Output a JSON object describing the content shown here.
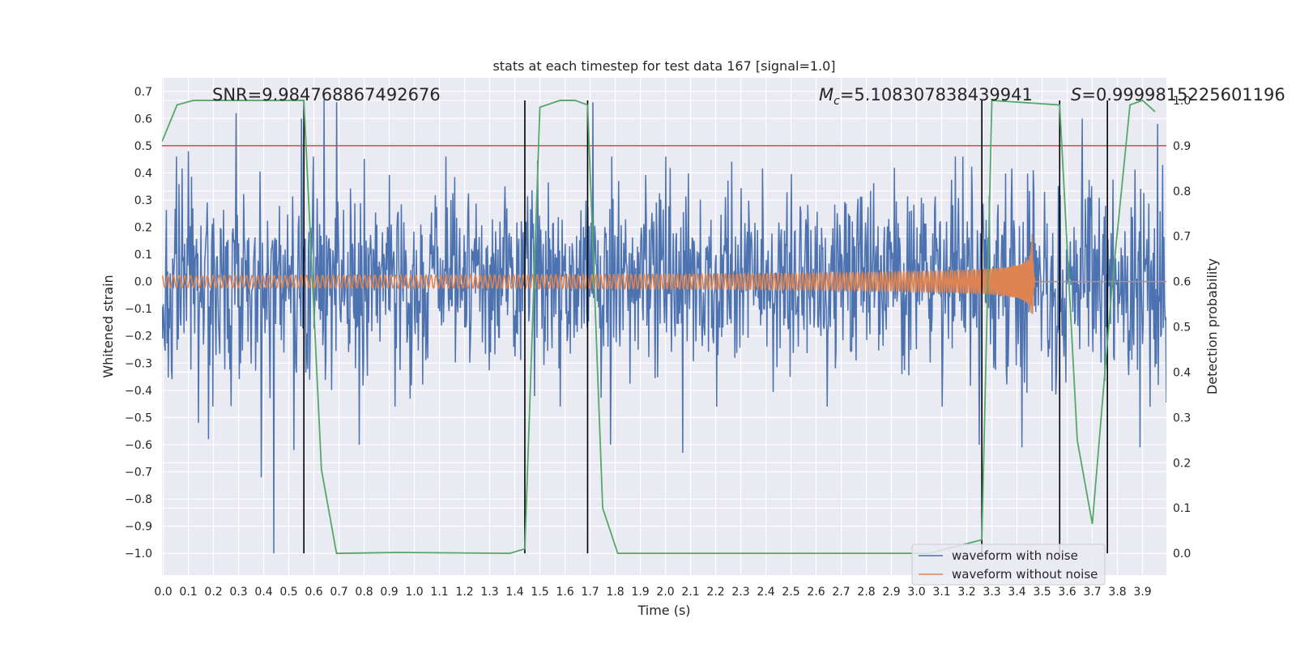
{
  "chart_data": {
    "type": "line",
    "title": "stats at each timestep for test data 167 [signal=1.0]",
    "xlabel": "Time (s)",
    "ylabel": "Whitened strain",
    "y2label": "Detection probability",
    "xlim": [
      -0.005,
      3.995
    ],
    "ylim": [
      -1.08,
      0.75
    ],
    "y2lim": [
      -0.048,
      1.05
    ],
    "x_ticks": [
      "0.0",
      "0.1",
      "0.2",
      "0.3",
      "0.4",
      "0.5",
      "0.6",
      "0.7",
      "0.8",
      "0.9",
      "1.0",
      "1.1",
      "1.2",
      "1.3",
      "1.4",
      "1.5",
      "1.6",
      "1.7",
      "1.8",
      "1.9",
      "2.0",
      "2.1",
      "2.2",
      "2.3",
      "2.4",
      "2.5",
      "2.6",
      "2.7",
      "2.8",
      "2.9",
      "3.0",
      "3.1",
      "3.2",
      "3.3",
      "3.4",
      "3.5",
      "3.6",
      "3.7",
      "3.8",
      "3.9"
    ],
    "y_ticks": [
      "0.7",
      "0.6",
      "0.5",
      "0.4",
      "0.3",
      "0.2",
      "0.1",
      "0.0",
      "−0.1",
      "−0.2",
      "−0.3",
      "−0.4",
      "−0.5",
      "−0.6",
      "−0.7",
      "−0.8",
      "−0.9",
      "−1.0"
    ],
    "y2_ticks": [
      "1.0",
      "0.9",
      "0.8",
      "0.7",
      "0.6",
      "0.5",
      "0.4",
      "0.3",
      "0.2",
      "0.1",
      "0.0"
    ],
    "annotations": {
      "snr": "SNR=9.984768867492676",
      "mc_symbol": "M",
      "mc_sub": "c",
      "mc_value": "=5.108307838439941",
      "s_symbol": "S",
      "s_value": "=0.9999815225601196"
    },
    "threshold": {
      "axis": "y2",
      "value": 0.9,
      "color": "#c44e52"
    },
    "vertical_markers": [
      0.56,
      1.44,
      1.69,
      3.26,
      3.57,
      3.76
    ],
    "noise_series": {
      "name": "waveform with noise",
      "color": "#4c72b0",
      "sigma": 0.175,
      "spikes": [
        {
          "x": 0.1,
          "y": 0.48
        },
        {
          "x": 0.14,
          "y": -0.52
        },
        {
          "x": 0.18,
          "y": -0.58
        },
        {
          "x": 0.29,
          "y": 0.62
        },
        {
          "x": 0.39,
          "y": -0.72
        },
        {
          "x": 0.44,
          "y": -1.0
        },
        {
          "x": 0.52,
          "y": -0.62
        },
        {
          "x": 0.55,
          "y": 0.6
        },
        {
          "x": 0.64,
          "y": 0.67
        },
        {
          "x": 0.69,
          "y": 0.66
        },
        {
          "x": 0.78,
          "y": -0.6
        },
        {
          "x": 1.71,
          "y": 0.66
        },
        {
          "x": 1.78,
          "y": -0.6
        },
        {
          "x": 2.07,
          "y": -0.63
        },
        {
          "x": 3.25,
          "y": -0.6
        },
        {
          "x": 3.42,
          "y": -0.61
        },
        {
          "x": 3.66,
          "y": 0.6
        },
        {
          "x": 3.89,
          "y": -0.61
        },
        {
          "x": 3.96,
          "y": 0.58
        }
      ]
    },
    "clean_series": {
      "name": "waveform without noise",
      "color": "#dd8452",
      "t_merge": 3.46,
      "t_end": 3.47,
      "amp_start": 0.022,
      "amp_peak": 0.18
    },
    "probability_series": {
      "name": "detection probability",
      "axis": "y2",
      "color": "#55a868",
      "x": [
        -0.005,
        0.055,
        0.12,
        0.56,
        0.63,
        0.69,
        0.93,
        1.38,
        1.44,
        1.5,
        1.58,
        1.64,
        1.69,
        1.75,
        1.81,
        3.05,
        3.26,
        3.3,
        3.57,
        3.64,
        3.7,
        3.78,
        3.85,
        3.9,
        3.95
      ],
      "y": [
        0.909,
        0.99,
        1.0,
        1.0,
        0.185,
        0.0,
        0.002,
        0.0,
        0.01,
        0.985,
        1.0,
        1.0,
        0.99,
        0.1,
        0.0,
        0.0,
        0.03,
        1.0,
        0.99,
        0.25,
        0.065,
        0.6,
        0.99,
        1.0,
        0.975
      ]
    },
    "legend": {
      "placement": "lower right",
      "items": [
        {
          "label": "waveform with noise",
          "color": "#4c72b0"
        },
        {
          "label": "waveform without noise",
          "color": "#dd8452"
        }
      ]
    },
    "grid": true
  }
}
